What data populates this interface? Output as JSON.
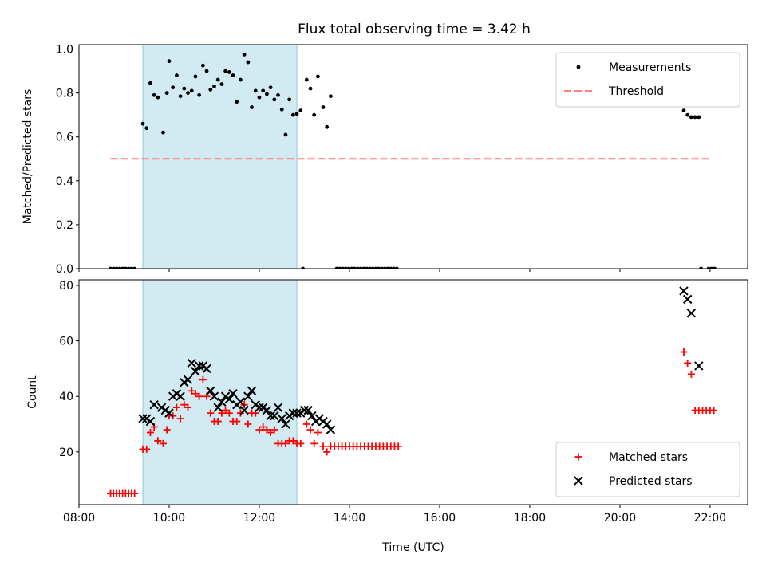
{
  "title": "Flux total observing time = 3.42 h",
  "colors": {
    "measurement": "#000000",
    "threshold": "#ff7f7f",
    "matched": "#ff0000",
    "predicted": "#000000",
    "shade": "#add8e6"
  },
  "chart_data": [
    {
      "type": "scatter",
      "panel": "top",
      "ylabel": "Matched/Predicted stars",
      "xlim": [
        "08:00",
        "22:50"
      ],
      "ylim": [
        0,
        1.02
      ],
      "yticks": [
        "0.0",
        "0.2",
        "0.4",
        "0.6",
        "0.8",
        "1.0"
      ],
      "shaded_interval": [
        "09:25",
        "12:50"
      ],
      "legend_position": "top-right",
      "series": [
        {
          "name": "Measurements",
          "marker": "dot",
          "points": [
            [
              "08:42",
              0
            ],
            [
              "08:46",
              0
            ],
            [
              "08:50",
              0
            ],
            [
              "08:54",
              0
            ],
            [
              "08:58",
              0
            ],
            [
              "09:02",
              0
            ],
            [
              "09:06",
              0
            ],
            [
              "09:10",
              0
            ],
            [
              "09:14",
              0
            ],
            [
              "09:25",
              0.66
            ],
            [
              "09:30",
              0.64
            ],
            [
              "09:35",
              0.845
            ],
            [
              "09:40",
              0.79
            ],
            [
              "09:45",
              0.78
            ],
            [
              "09:52",
              0.62
            ],
            [
              "09:57",
              0.8
            ],
            [
              "10:00",
              0.945
            ],
            [
              "10:05",
              0.825
            ],
            [
              "10:10",
              0.88
            ],
            [
              "10:15",
              0.785
            ],
            [
              "10:20",
              0.82
            ],
            [
              "10:25",
              0.8
            ],
            [
              "10:30",
              0.81
            ],
            [
              "10:35",
              0.875
            ],
            [
              "10:40",
              0.79
            ],
            [
              "10:45",
              0.925
            ],
            [
              "10:50",
              0.9
            ],
            [
              "10:55",
              0.815
            ],
            [
              "11:00",
              0.83
            ],
            [
              "11:05",
              0.86
            ],
            [
              "11:10",
              0.84
            ],
            [
              "11:15",
              0.9
            ],
            [
              "11:20",
              0.895
            ],
            [
              "11:25",
              0.88
            ],
            [
              "11:30",
              0.76
            ],
            [
              "11:35",
              0.86
            ],
            [
              "11:40",
              0.975
            ],
            [
              "11:45",
              0.94
            ],
            [
              "11:50",
              0.735
            ],
            [
              "11:55",
              0.81
            ],
            [
              "12:00",
              0.78
            ],
            [
              "12:05",
              0.81
            ],
            [
              "12:10",
              0.795
            ],
            [
              "12:15",
              0.825
            ],
            [
              "12:20",
              0.77
            ],
            [
              "12:25",
              0.79
            ],
            [
              "12:30",
              0.725
            ],
            [
              "12:35",
              0.61
            ],
            [
              "12:40",
              0.77
            ],
            [
              "12:45",
              0.7
            ],
            [
              "12:50",
              0.705
            ],
            [
              "12:55",
              0.72
            ],
            [
              "12:58",
              0
            ],
            [
              "13:03",
              0.86
            ],
            [
              "13:08",
              0.82
            ],
            [
              "13:13",
              0.7
            ],
            [
              "13:18",
              0.875
            ],
            [
              "13:25",
              0.735
            ],
            [
              "13:30",
              0.645
            ],
            [
              "13:35",
              0.785
            ],
            [
              "13:43",
              0
            ],
            [
              "13:47",
              0
            ],
            [
              "13:51",
              0
            ],
            [
              "13:55",
              0
            ],
            [
              "13:59",
              0
            ],
            [
              "14:03",
              0
            ],
            [
              "14:07",
              0
            ],
            [
              "14:11",
              0
            ],
            [
              "14:15",
              0
            ],
            [
              "14:19",
              0
            ],
            [
              "14:23",
              0
            ],
            [
              "14:27",
              0
            ],
            [
              "14:31",
              0
            ],
            [
              "14:35",
              0
            ],
            [
              "14:39",
              0
            ],
            [
              "14:43",
              0
            ],
            [
              "14:47",
              0
            ],
            [
              "14:51",
              0
            ],
            [
              "14:55",
              0
            ],
            [
              "14:59",
              0
            ],
            [
              "15:03",
              0
            ],
            [
              "21:25",
              0.72
            ],
            [
              "21:30",
              0.7
            ],
            [
              "21:35",
              0.69
            ],
            [
              "21:40",
              0.69
            ],
            [
              "21:45",
              0.69
            ],
            [
              "21:48",
              0
            ],
            [
              "21:58",
              0
            ],
            [
              "22:02",
              0
            ],
            [
              "22:06",
              0
            ]
          ]
        },
        {
          "name": "Threshold",
          "marker": "dashed-line",
          "points": [
            [
              "08:42",
              0.5
            ],
            [
              "22:00",
              0.5
            ]
          ]
        }
      ]
    },
    {
      "type": "scatter",
      "panel": "bottom",
      "ylabel": "Count",
      "xlabel": "Time (UTC)",
      "xlim": [
        "08:00",
        "22:50"
      ],
      "ylim": [
        1,
        82
      ],
      "yticks": [
        "20",
        "40",
        "60",
        "80"
      ],
      "xticks": [
        "08:00",
        "10:00",
        "12:00",
        "14:00",
        "16:00",
        "18:00",
        "20:00",
        "22:00"
      ],
      "shaded_interval": [
        "09:25",
        "12:50"
      ],
      "legend_position": "bottom-right",
      "series": [
        {
          "name": "Matched stars",
          "marker": "plus",
          "points": [
            [
              "08:42",
              5
            ],
            [
              "08:46",
              5
            ],
            [
              "08:50",
              5
            ],
            [
              "08:54",
              5
            ],
            [
              "08:58",
              5
            ],
            [
              "09:02",
              5
            ],
            [
              "09:06",
              5
            ],
            [
              "09:10",
              5
            ],
            [
              "09:14",
              5
            ],
            [
              "09:25",
              21
            ],
            [
              "09:30",
              21
            ],
            [
              "09:35",
              27
            ],
            [
              "09:40",
              29
            ],
            [
              "09:45",
              24
            ],
            [
              "09:52",
              23
            ],
            [
              "09:57",
              28
            ],
            [
              "10:00",
              33
            ],
            [
              "10:05",
              33
            ],
            [
              "10:10",
              36
            ],
            [
              "10:15",
              32
            ],
            [
              "10:20",
              37
            ],
            [
              "10:25",
              36
            ],
            [
              "10:30",
              42
            ],
            [
              "10:35",
              41
            ],
            [
              "10:40",
              40
            ],
            [
              "10:45",
              46
            ],
            [
              "10:50",
              40
            ],
            [
              "10:55",
              34
            ],
            [
              "11:00",
              31
            ],
            [
              "11:05",
              31
            ],
            [
              "11:10",
              34
            ],
            [
              "11:15",
              35
            ],
            [
              "11:20",
              34
            ],
            [
              "11:25",
              31
            ],
            [
              "11:30",
              31
            ],
            [
              "11:35",
              34
            ],
            [
              "11:40",
              37
            ],
            [
              "11:45",
              30
            ],
            [
              "11:50",
              34
            ],
            [
              "11:55",
              34
            ],
            [
              "12:00",
              28
            ],
            [
              "12:05",
              29
            ],
            [
              "12:10",
              28
            ],
            [
              "12:15",
              27
            ],
            [
              "12:20",
              28
            ],
            [
              "12:25",
              23
            ],
            [
              "12:30",
              23
            ],
            [
              "12:35",
              23
            ],
            [
              "12:40",
              24
            ],
            [
              "12:45",
              24
            ],
            [
              "12:50",
              23
            ],
            [
              "12:55",
              23
            ],
            [
              "13:03",
              30
            ],
            [
              "13:08",
              28
            ],
            [
              "13:13",
              23
            ],
            [
              "13:18",
              27
            ],
            [
              "13:25",
              22
            ],
            [
              "13:30",
              20
            ],
            [
              "13:35",
              22
            ],
            [
              "13:40",
              22
            ],
            [
              "13:45",
              22
            ],
            [
              "13:50",
              22
            ],
            [
              "13:55",
              22
            ],
            [
              "14:00",
              22
            ],
            [
              "14:05",
              22
            ],
            [
              "14:10",
              22
            ],
            [
              "14:15",
              22
            ],
            [
              "14:20",
              22
            ],
            [
              "14:25",
              22
            ],
            [
              "14:30",
              22
            ],
            [
              "14:35",
              22
            ],
            [
              "14:40",
              22
            ],
            [
              "14:45",
              22
            ],
            [
              "14:50",
              22
            ],
            [
              "14:55",
              22
            ],
            [
              "15:00",
              22
            ],
            [
              "15:05",
              22
            ],
            [
              "21:25",
              56
            ],
            [
              "21:30",
              52
            ],
            [
              "21:35",
              48
            ],
            [
              "21:40",
              35
            ],
            [
              "21:45",
              35
            ],
            [
              "21:50",
              35
            ],
            [
              "21:55",
              35
            ],
            [
              "22:00",
              35
            ],
            [
              "22:05",
              35
            ]
          ]
        },
        {
          "name": "Predicted stars",
          "marker": "x",
          "points": [
            [
              "09:25",
              32
            ],
            [
              "09:30",
              32
            ],
            [
              "09:35",
              31
            ],
            [
              "09:40",
              37
            ],
            [
              "09:50",
              36
            ],
            [
              "09:55",
              35
            ],
            [
              "10:00",
              34
            ],
            [
              "10:05",
              40
            ],
            [
              "10:10",
              41
            ],
            [
              "10:15",
              40
            ],
            [
              "10:20",
              45
            ],
            [
              "10:25",
              46
            ],
            [
              "10:30",
              52
            ],
            [
              "10:35",
              49
            ],
            [
              "10:40",
              51
            ],
            [
              "10:45",
              51
            ],
            [
              "10:50",
              50
            ],
            [
              "10:55",
              42
            ],
            [
              "11:00",
              40
            ],
            [
              "11:05",
              36
            ],
            [
              "11:10",
              38
            ],
            [
              "11:15",
              40
            ],
            [
              "11:20",
              39
            ],
            [
              "11:25",
              41
            ],
            [
              "11:30",
              37
            ],
            [
              "11:35",
              38
            ],
            [
              "11:40",
              35
            ],
            [
              "11:45",
              40
            ],
            [
              "11:50",
              42
            ],
            [
              "11:55",
              37
            ],
            [
              "12:00",
              36
            ],
            [
              "12:05",
              36
            ],
            [
              "12:10",
              35
            ],
            [
              "12:15",
              33
            ],
            [
              "12:20",
              33
            ],
            [
              "12:25",
              36
            ],
            [
              "12:30",
              32
            ],
            [
              "12:35",
              30
            ],
            [
              "12:40",
              33
            ],
            [
              "12:45",
              34
            ],
            [
              "12:50",
              34
            ],
            [
              "12:55",
              34
            ],
            [
              "13:00",
              35
            ],
            [
              "13:05",
              35
            ],
            [
              "13:10",
              33
            ],
            [
              "13:15",
              31
            ],
            [
              "13:20",
              32
            ],
            [
              "13:25",
              31
            ],
            [
              "13:30",
              30
            ],
            [
              "13:35",
              28
            ],
            [
              "21:25",
              78
            ],
            [
              "21:30",
              75
            ],
            [
              "21:35",
              70
            ],
            [
              "21:45",
              51
            ]
          ]
        }
      ]
    }
  ]
}
